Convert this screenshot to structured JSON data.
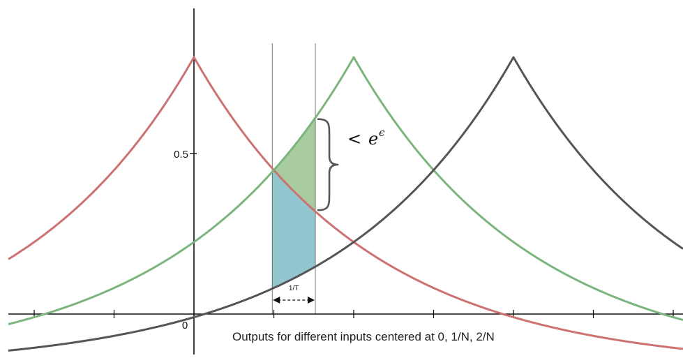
{
  "chart_data": {
    "type": "line",
    "title": "",
    "xlabel": "Outputs for different inputs centered at 0, 1/N, 2/N",
    "ylabel": "",
    "origin_label": "0",
    "y_tick_label": "0.5",
    "x_axis_range": [
      -3,
      7
    ],
    "y_axis_range": [
      0,
      1
    ],
    "y_tick_value": 0.5,
    "x_tick_step": 1,
    "curves": [
      {
        "center": 0,
        "peak": 0.87,
        "decay": 0.45,
        "color": "#cc7272"
      },
      {
        "center": 2,
        "peak": 0.87,
        "decay": 0.45,
        "color": "#7bb57d"
      },
      {
        "center": 4,
        "peak": 0.87,
        "decay": 0.45,
        "color": "#555555"
      }
    ],
    "interval": {
      "from": 0.98,
      "to": 1.52,
      "label": "1/T"
    },
    "fill_colors": {
      "upper": "#7ab06d",
      "lower": "#5aaab5"
    },
    "annotation": {
      "lt": "<",
      "base": "e",
      "exponent": "ϵ"
    }
  }
}
